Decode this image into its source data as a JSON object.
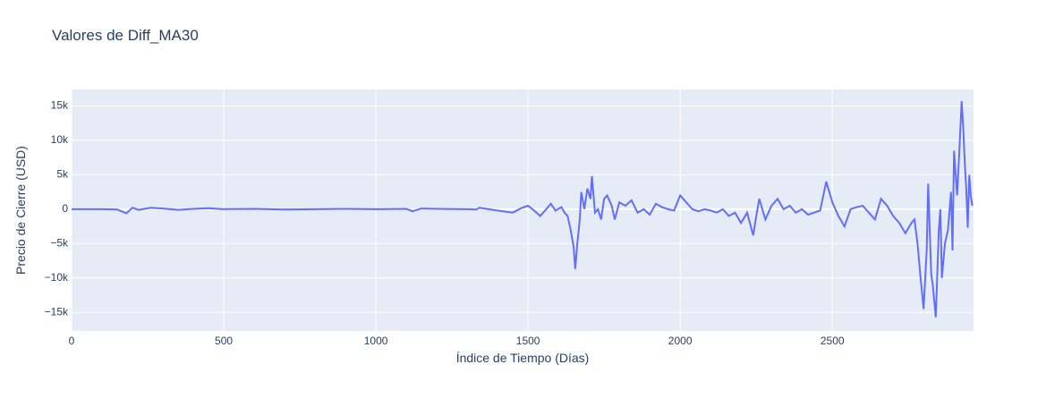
{
  "chart_data": {
    "type": "line",
    "title": "Valores de Diff_MA30",
    "x_label": "Índice de Tiempo (Días)",
    "y_label": "Precio de Cierre (USD)",
    "color": "#636efa",
    "grid": true,
    "xlim": [
      0,
      2964
    ],
    "ylim": [
      -17700,
      17400
    ],
    "xticks": [
      0,
      500,
      1000,
      1500,
      2000,
      2500
    ],
    "yticks": [
      {
        "value": -15000,
        "label": "−15k"
      },
      {
        "value": -10000,
        "label": "−10k"
      },
      {
        "value": -5000,
        "label": "−5k"
      },
      0,
      {
        "value": 5000,
        "label": "5k"
      },
      {
        "value": 10000,
        "label": "10k"
      },
      {
        "value": 15000,
        "label": "15k"
      }
    ],
    "x": [
      0,
      100,
      150,
      180,
      200,
      220,
      260,
      300,
      350,
      400,
      450,
      500,
      600,
      700,
      800,
      900,
      1000,
      1100,
      1120,
      1150,
      1200,
      1300,
      1330,
      1340,
      1400,
      1450,
      1480,
      1500,
      1520,
      1540,
      1560,
      1575,
      1590,
      1610,
      1620,
      1630,
      1640,
      1650,
      1655,
      1662,
      1670,
      1675,
      1685,
      1695,
      1705,
      1710,
      1720,
      1730,
      1740,
      1750,
      1760,
      1775,
      1785,
      1800,
      1820,
      1840,
      1860,
      1880,
      1900,
      1920,
      1940,
      1960,
      1980,
      2000,
      2020,
      2040,
      2060,
      2080,
      2100,
      2120,
      2140,
      2160,
      2180,
      2200,
      2220,
      2240,
      2250,
      2260,
      2280,
      2300,
      2320,
      2340,
      2360,
      2380,
      2400,
      2420,
      2440,
      2460,
      2480,
      2500,
      2520,
      2540,
      2560,
      2580,
      2600,
      2620,
      2640,
      2660,
      2680,
      2700,
      2720,
      2740,
      2760,
      2770,
      2780,
      2790,
      2800,
      2810,
      2815,
      2825,
      2830,
      2840,
      2850,
      2855,
      2860,
      2870,
      2880,
      2890,
      2895,
      2900,
      2910,
      2918,
      2925,
      2930,
      2935,
      2940,
      2945,
      2950,
      2955,
      2960
    ],
    "values": [
      0,
      0,
      -50,
      -600,
      200,
      -100,
      200,
      100,
      -100,
      50,
      150,
      0,
      50,
      -50,
      0,
      50,
      0,
      50,
      -300,
      100,
      50,
      0,
      -50,
      200,
      -200,
      -500,
      200,
      500,
      -200,
      -1000,
      0,
      800,
      -200,
      300,
      -500,
      -1000,
      -3000,
      -5500,
      -8700,
      -5000,
      -1500,
      2500,
      0,
      3000,
      1500,
      4800,
      -500,
      0,
      -1500,
      1500,
      2000,
      500,
      -1500,
      1000,
      500,
      1300,
      -500,
      0,
      -800,
      800,
      300,
      0,
      -200,
      2000,
      1000,
      0,
      -300,
      0,
      -200,
      -500,
      0,
      -1000,
      -500,
      -2000,
      -500,
      -3800,
      -1000,
      1500,
      -1500,
      500,
      1500,
      0,
      500,
      -500,
      0,
      -800,
      -500,
      -200,
      4000,
      1000,
      -1000,
      -2500,
      0,
      300,
      500,
      -500,
      -1500,
      1500,
      500,
      -1000,
      -2000,
      -3500,
      -2000,
      -1500,
      -5000,
      -10000,
      -14500,
      -6000,
      3700,
      -9500,
      -11000,
      -15700,
      -3000,
      0,
      -10000,
      -5000,
      -3000,
      2500,
      -6000,
      8500,
      2000,
      9000,
      15700,
      12000,
      7000,
      3000,
      -2700,
      5000,
      2000,
      500
    ]
  }
}
